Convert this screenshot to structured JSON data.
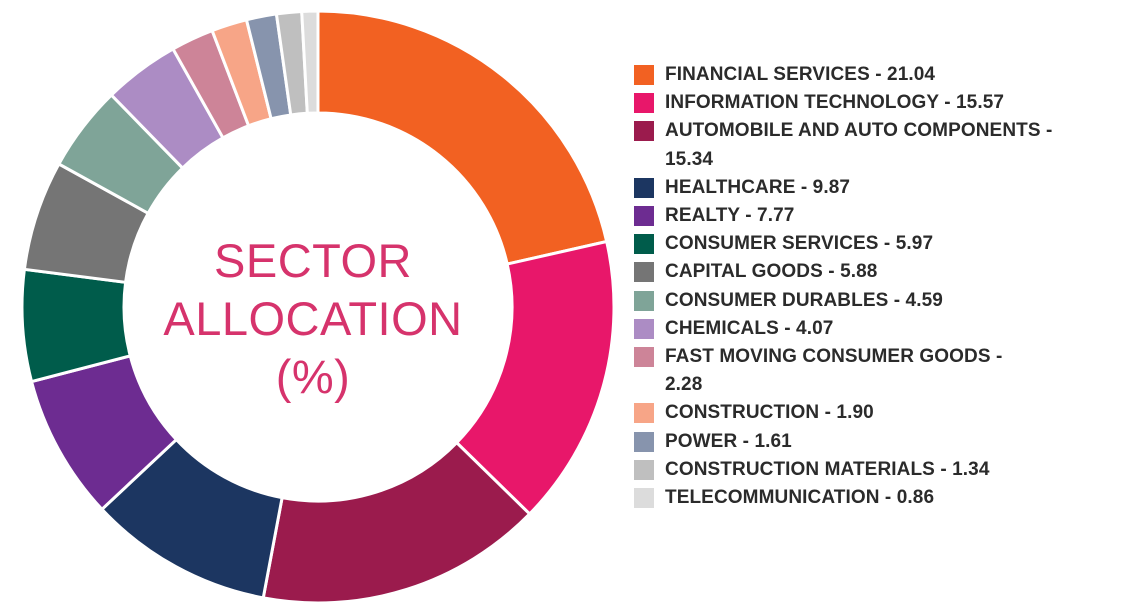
{
  "chart_data": {
    "type": "pie",
    "variant": "donut",
    "title_lines": [
      "SECTOR",
      "ALLOCATION",
      "(%)"
    ],
    "title_color": "#d6336c",
    "legend_position": "right",
    "slices": [
      {
        "label": "FINANCIAL SERVICES",
        "value": 21.04,
        "value_text": "21.04",
        "color": "#f26122",
        "legend_lines": [
          "FINANCIAL SERVICES - 21.04"
        ]
      },
      {
        "label": "INFORMATION TECHNOLOGY",
        "value": 15.57,
        "value_text": "15.57",
        "color": "#e8176a",
        "legend_lines": [
          "INFORMATION TECHNOLOGY - 15.57"
        ]
      },
      {
        "label": "AUTOMOBILE AND AUTO COMPONENTS",
        "value": 15.34,
        "value_text": "15.34",
        "color": "#9b1b4d",
        "legend_lines": [
          "AUTOMOBILE AND AUTO COMPONENTS -",
          "15.34"
        ]
      },
      {
        "label": "HEALTHCARE",
        "value": 9.87,
        "value_text": "9.87",
        "color": "#1c3661",
        "legend_lines": [
          "HEALTHCARE - 9.87"
        ]
      },
      {
        "label": "REALTY",
        "value": 7.77,
        "value_text": "7.77",
        "color": "#6d2c91",
        "legend_lines": [
          "REALTY - 7.77"
        ]
      },
      {
        "label": "CONSUMER SERVICES",
        "value": 5.97,
        "value_text": "5.97",
        "color": "#005c4b",
        "legend_lines": [
          "CONSUMER SERVICES - 5.97"
        ]
      },
      {
        "label": "CAPITAL GOODS",
        "value": 5.88,
        "value_text": "5.88",
        "color": "#757575",
        "legend_lines": [
          "CAPITAL GOODS - 5.88"
        ]
      },
      {
        "label": "CONSUMER DURABLES",
        "value": 4.59,
        "value_text": "4.59",
        "color": "#7fa498",
        "legend_lines": [
          "CONSUMER DURABLES - 4.59"
        ]
      },
      {
        "label": "CHEMICALS",
        "value": 4.07,
        "value_text": "4.07",
        "color": "#ac8cc4",
        "legend_lines": [
          "CHEMICALS - 4.07"
        ]
      },
      {
        "label": "FAST MOVING CONSUMER GOODS",
        "value": 2.28,
        "value_text": "2.28",
        "color": "#cd8498",
        "legend_lines": [
          "FAST MOVING CONSUMER GOODS -",
          "2.28"
        ]
      },
      {
        "label": "CONSTRUCTION",
        "value": 1.9,
        "value_text": "1.90",
        "color": "#f7a587",
        "legend_lines": [
          "CONSTRUCTION - 1.90"
        ]
      },
      {
        "label": "POWER",
        "value": 1.61,
        "value_text": "1.61",
        "color": "#8794ad",
        "legend_lines": [
          "POWER - 1.61"
        ]
      },
      {
        "label": "CONSTRUCTION MATERIALS",
        "value": 1.34,
        "value_text": "1.34",
        "color": "#bfbfbf",
        "legend_lines": [
          "CONSTRUCTION MATERIALS - 1.34"
        ]
      },
      {
        "label": "TELECOMMUNICATION",
        "value": 0.86,
        "value_text": "0.86",
        "color": "#dcdcdc",
        "legend_lines": [
          "TELECOMMUNICATION - 0.86"
        ]
      }
    ]
  }
}
